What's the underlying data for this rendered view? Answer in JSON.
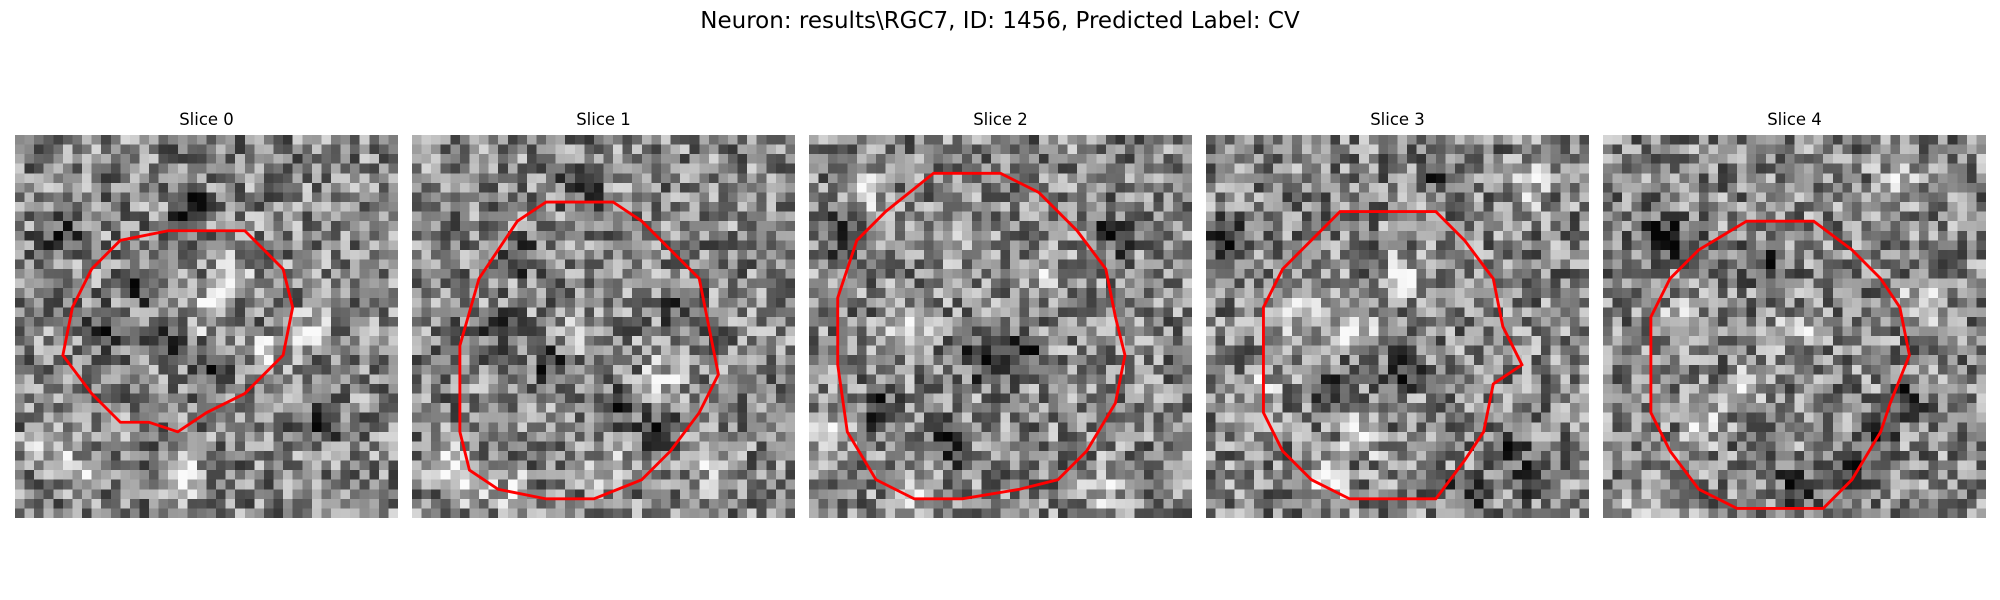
{
  "figure": {
    "title": "Neuron: results\\RGC7, ID: 1456, Predicted Label: CV"
  },
  "slices": [
    {
      "title": "Slice 0",
      "contour": [
        [
          16,
          10
        ],
        [
          24,
          10
        ],
        [
          28,
          14
        ],
        [
          29,
          18
        ],
        [
          28,
          23
        ],
        [
          24,
          27
        ],
        [
          20,
          29
        ],
        [
          17,
          31
        ],
        [
          14,
          30
        ],
        [
          11,
          30
        ],
        [
          8,
          27
        ],
        [
          5,
          23
        ],
        [
          6,
          18
        ],
        [
          8,
          14
        ],
        [
          11,
          11
        ]
      ],
      "dark_spots": [
        [
          12,
          15
        ],
        [
          9,
          20
        ],
        [
          20,
          24
        ],
        [
          15,
          21
        ],
        [
          18,
          7
        ],
        [
          4,
          10
        ],
        [
          31,
          30
        ]
      ],
      "light_spots": [
        [
          22,
          14
        ],
        [
          20,
          18
        ],
        [
          26,
          22
        ],
        [
          17,
          35
        ],
        [
          6,
          35
        ],
        [
          3,
          32
        ],
        [
          30,
          20
        ]
      ]
    },
    {
      "title": "Slice 1",
      "contour": [
        [
          14,
          7
        ],
        [
          21,
          7
        ],
        [
          24,
          9
        ],
        [
          27,
          12
        ],
        [
          30,
          15
        ],
        [
          31,
          20
        ],
        [
          32,
          25
        ],
        [
          30,
          29
        ],
        [
          27,
          33
        ],
        [
          24,
          36
        ],
        [
          19,
          38
        ],
        [
          14,
          38
        ],
        [
          9,
          37
        ],
        [
          6,
          35
        ],
        [
          5,
          31
        ],
        [
          5,
          22
        ],
        [
          7,
          15
        ],
        [
          9,
          12
        ],
        [
          11,
          9
        ]
      ],
      "dark_spots": [
        [
          11,
          12
        ],
        [
          9,
          20
        ],
        [
          14,
          24
        ],
        [
          21,
          28
        ],
        [
          25,
          31
        ],
        [
          28,
          18
        ],
        [
          17,
          5
        ]
      ],
      "light_spots": [
        [
          3,
          33
        ],
        [
          5,
          36
        ],
        [
          10,
          37
        ],
        [
          20,
          35
        ],
        [
          26,
          25
        ],
        [
          17,
          20
        ],
        [
          31,
          34
        ]
      ]
    },
    {
      "title": "Slice 2",
      "contour": [
        [
          13,
          4
        ],
        [
          20,
          4
        ],
        [
          24,
          6
        ],
        [
          28,
          10
        ],
        [
          31,
          14
        ],
        [
          32,
          19
        ],
        [
          33,
          23
        ],
        [
          32,
          28
        ],
        [
          29,
          33
        ],
        [
          26,
          36
        ],
        [
          22,
          37
        ],
        [
          16,
          38
        ],
        [
          11,
          38
        ],
        [
          7,
          36
        ],
        [
          4,
          31
        ],
        [
          3,
          24
        ],
        [
          3,
          17
        ],
        [
          5,
          11
        ],
        [
          8,
          8
        ]
      ],
      "dark_spots": [
        [
          17,
          22
        ],
        [
          22,
          22
        ],
        [
          19,
          24
        ],
        [
          7,
          28
        ],
        [
          31,
          10
        ],
        [
          3,
          10
        ],
        [
          14,
          32
        ]
      ],
      "light_spots": [
        [
          14,
          11
        ],
        [
          10,
          20
        ],
        [
          24,
          14
        ],
        [
          11,
          37
        ],
        [
          2,
          30
        ],
        [
          30,
          36
        ],
        [
          6,
          5
        ]
      ]
    },
    {
      "title": "Slice 3",
      "contour": [
        [
          14,
          8
        ],
        [
          24,
          8
        ],
        [
          27,
          11
        ],
        [
          30,
          15
        ],
        [
          31,
          20
        ],
        [
          33,
          24
        ],
        [
          30,
          26
        ],
        [
          29,
          31
        ],
        [
          27,
          34
        ],
        [
          24,
          38
        ],
        [
          15,
          38
        ],
        [
          11,
          36
        ],
        [
          8,
          33
        ],
        [
          6,
          29
        ],
        [
          6,
          18
        ],
        [
          8,
          14
        ],
        [
          11,
          11
        ]
      ],
      "dark_spots": [
        [
          20,
          24
        ],
        [
          13,
          26
        ],
        [
          27,
          37
        ],
        [
          31,
          32
        ],
        [
          34,
          35
        ],
        [
          2,
          10
        ],
        [
          24,
          4
        ]
      ],
      "light_spots": [
        [
          15,
          20
        ],
        [
          9,
          18
        ],
        [
          16,
          31
        ],
        [
          12,
          36
        ],
        [
          33,
          5
        ],
        [
          5,
          26
        ],
        [
          20,
          14
        ]
      ]
    },
    {
      "title": "Slice 4",
      "contour": [
        [
          15,
          9
        ],
        [
          22,
          9
        ],
        [
          26,
          12
        ],
        [
          29,
          15
        ],
        [
          31,
          18
        ],
        [
          32,
          23
        ],
        [
          30,
          28
        ],
        [
          29,
          31
        ],
        [
          26,
          36
        ],
        [
          23,
          39
        ],
        [
          14,
          39
        ],
        [
          10,
          37
        ],
        [
          7,
          33
        ],
        [
          5,
          29
        ],
        [
          5,
          19
        ],
        [
          7,
          15
        ],
        [
          10,
          12
        ]
      ],
      "dark_spots": [
        [
          5,
          10
        ],
        [
          7,
          10
        ],
        [
          16,
          13
        ],
        [
          28,
          31
        ],
        [
          31,
          27
        ],
        [
          25,
          34
        ],
        [
          20,
          36
        ]
      ],
      "light_spots": [
        [
          8,
          18
        ],
        [
          20,
          20
        ],
        [
          15,
          26
        ],
        [
          10,
          30
        ],
        [
          33,
          17
        ],
        [
          2,
          38
        ],
        [
          30,
          5
        ]
      ]
    }
  ]
}
